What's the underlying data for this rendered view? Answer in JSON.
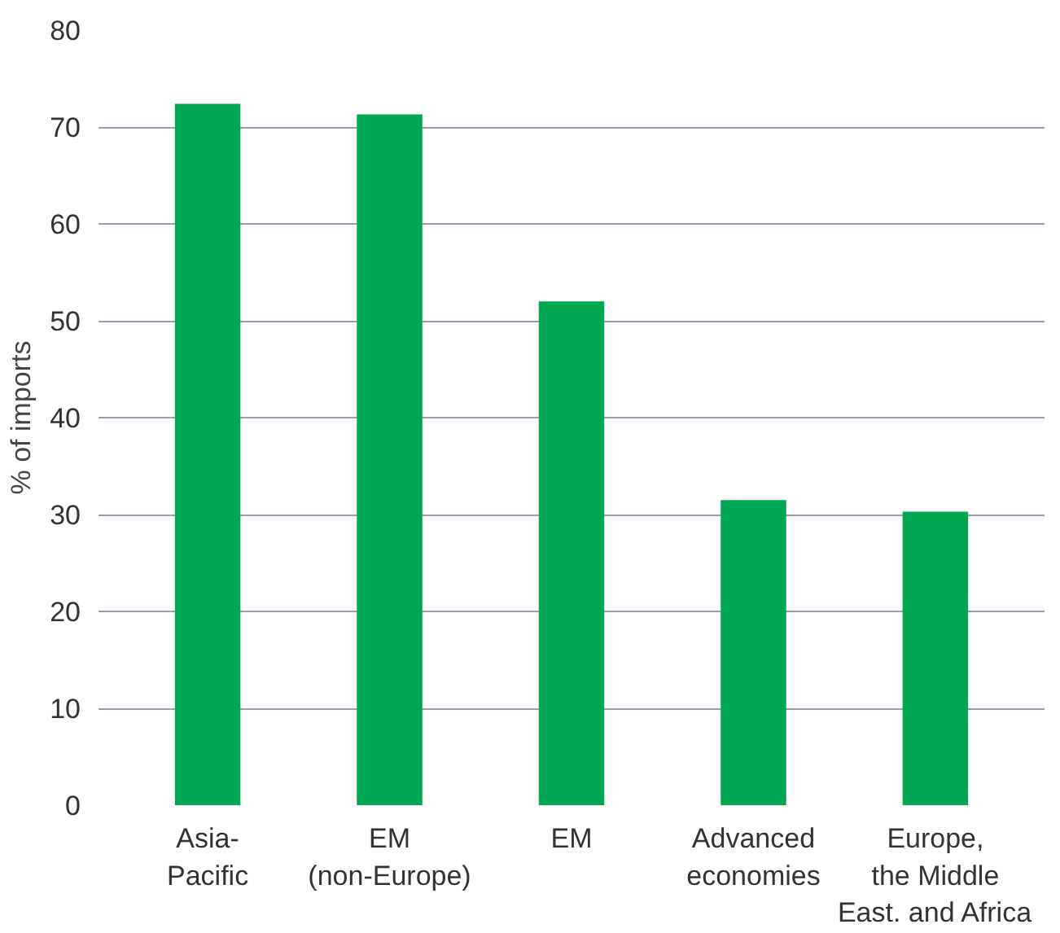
{
  "chart_data": {
    "type": "bar",
    "ylabel": "% of imports",
    "categories": [
      "Asia-\nPacific",
      "EM\n(non-Europe)",
      "EM",
      "Advanced\neconomies",
      "Europe,\nthe Middle\nEast. and Africa"
    ],
    "values": [
      72.4,
      71.3,
      52.0,
      31.5,
      30.3
    ],
    "color": "#00a651",
    "ylim": [
      0,
      80
    ],
    "yticks": [
      0,
      10,
      20,
      30,
      40,
      50,
      60,
      70,
      80
    ],
    "grid": "y"
  }
}
